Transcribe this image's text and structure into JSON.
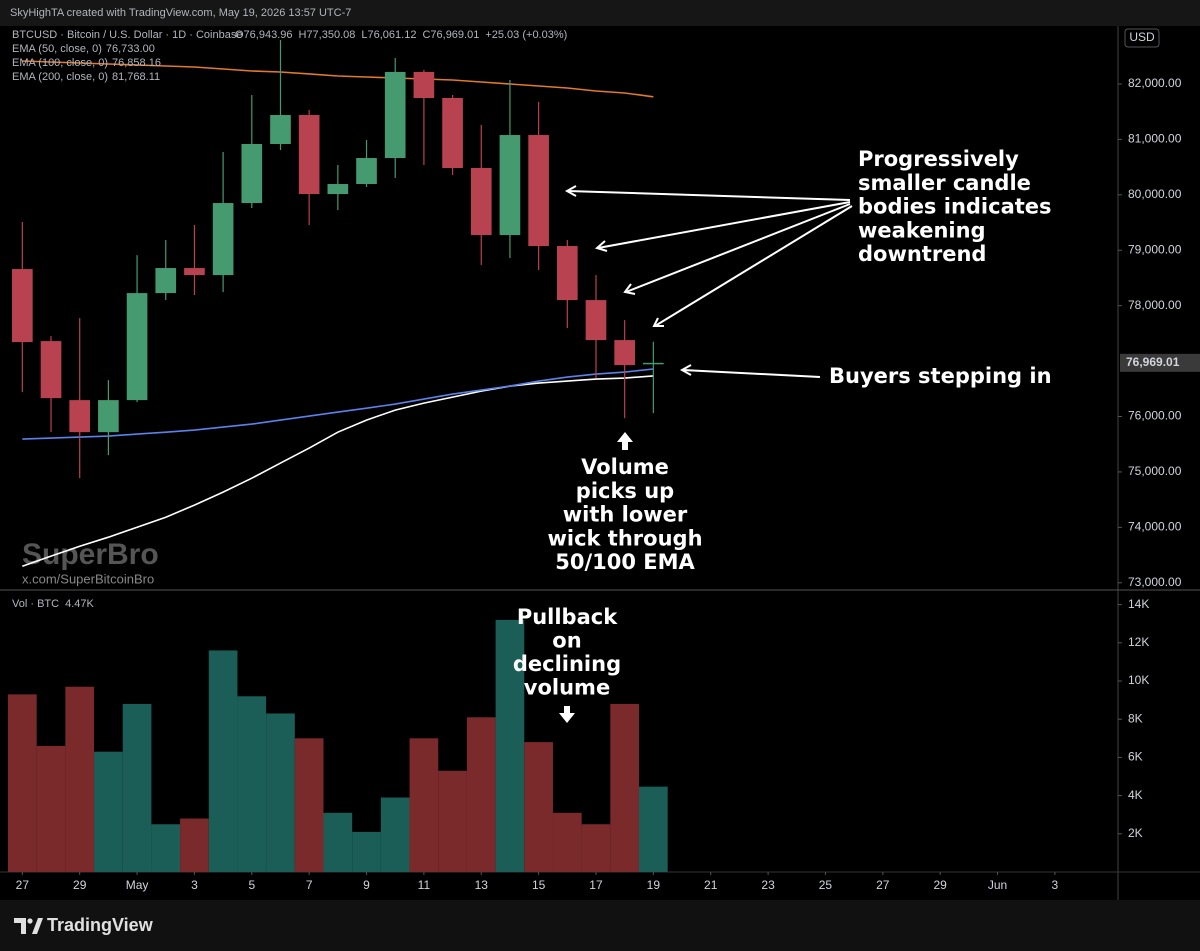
{
  "header": {
    "title": "SkyHighTA created with TradingView.com, May 19, 2026 13:57 UTC-7"
  },
  "chart_data": {
    "type": "candlestick",
    "symbol": "BTCUSD · Bitcoin / U.S. Dollar · 1D · Coinbase",
    "ohlc_labels": [
      "O76,943.96",
      "H77,350.08",
      "L76,061.12",
      "C76,969.01"
    ],
    "change_label": "+25.03 (+0.03%)",
    "currency": "USD",
    "last_price_label": "76,969.01",
    "xlim": [
      -0.5,
      38.2
    ],
    "xticks": [
      {
        "value": 0,
        "label": "27"
      },
      {
        "value": 2,
        "label": "29"
      },
      {
        "value": 4,
        "label": "May"
      },
      {
        "value": 6,
        "label": "3"
      },
      {
        "value": 8,
        "label": "5"
      },
      {
        "value": 10,
        "label": "7"
      },
      {
        "value": 12,
        "label": "9"
      },
      {
        "value": 14,
        "label": "11"
      },
      {
        "value": 16,
        "label": "13"
      },
      {
        "value": 18,
        "label": "15"
      },
      {
        "value": 20,
        "label": "17"
      },
      {
        "value": 22,
        "label": "19"
      },
      {
        "value": 24,
        "label": "21"
      },
      {
        "value": 26,
        "label": "23"
      },
      {
        "value": 28,
        "label": "25"
      },
      {
        "value": 30,
        "label": "27"
      },
      {
        "value": 32,
        "label": "29"
      },
      {
        "value": 34,
        "label": "Jun"
      },
      {
        "value": 36,
        "label": "3"
      }
    ],
    "ylim": [
      72870,
      83010
    ],
    "yticks": [
      {
        "value": 73000,
        "label": "73,000.00"
      },
      {
        "value": 74000,
        "label": "74,000.00"
      },
      {
        "value": 75000,
        "label": "75,000.00"
      },
      {
        "value": 76000,
        "label": "76,000.00"
      },
      {
        "value": 78000,
        "label": "78,000.00"
      },
      {
        "value": 79000,
        "label": "79,000.00"
      },
      {
        "value": 80000,
        "label": "80,000.00"
      },
      {
        "value": 81000,
        "label": "81,000.00"
      },
      {
        "value": 82000,
        "label": "82,000.00"
      }
    ],
    "candle_colors": {
      "up": "#469a70",
      "down": "#b8424f"
    },
    "candles": {
      "open": [
        78661,
        77361,
        76296,
        75718,
        76296,
        78227,
        78679,
        78552,
        79852,
        80917,
        81440,
        80014,
        80195,
        80664,
        82217,
        81747,
        80484,
        79274,
        81079,
        79076,
        78101,
        77379,
        76943.96
      ],
      "high": [
        79509,
        77451,
        77776,
        76657,
        78913,
        79184,
        79455,
        80773,
        81801,
        82794,
        81531,
        80538,
        80989,
        82469,
        82253,
        81801,
        81260,
        82072,
        81675,
        79184,
        78552,
        77740,
        77350.08
      ],
      "low": [
        76440,
        75718,
        74888,
        75303,
        76260,
        78101,
        78191,
        78245,
        79762,
        80809,
        79455,
        79726,
        80141,
        80303,
        80538,
        80357,
        78733,
        78859,
        78643,
        77596,
        76693,
        75971,
        76061.12
      ],
      "close": [
        77343,
        76332,
        75718,
        76296,
        78227,
        78679,
        78552,
        79852,
        80917,
        81440,
        80014,
        80195,
        80664,
        82217,
        81747,
        80484,
        79274,
        81079,
        79076,
        78101,
        77379,
        76928,
        76969.01
      ]
    },
    "ema": [
      {
        "name": "EMA (50, close, 0)",
        "value_label": "76,733.00",
        "color": "#ffffff",
        "values": [
          73300,
          73481,
          73661,
          73823,
          74003,
          74184,
          74401,
          74636,
          74888,
          75159,
          75430,
          75718,
          75935,
          76115,
          76242,
          76350,
          76458,
          76549,
          76603,
          76639,
          76675,
          76693,
          76733
        ]
      },
      {
        "name": "EMA (100, close, 0)",
        "value_label": "76,858.16",
        "color": "#5b82ea",
        "values": [
          75592,
          75610,
          75628,
          75646,
          75682,
          75718,
          75755,
          75809,
          75863,
          75935,
          76007,
          76079,
          76151,
          76224,
          76314,
          76404,
          76476,
          76549,
          76639,
          76711,
          76765,
          76801,
          76858.16
        ]
      },
      {
        "name": "EMA (200, close, 0)",
        "value_label": "81,768.11",
        "color": "#e07a2c",
        "values": [
          82415,
          82397,
          82379,
          82361,
          82343,
          82325,
          82307,
          82271,
          82235,
          82217,
          82181,
          82144,
          82126,
          82108,
          82090,
          82072,
          82036,
          82000,
          81964,
          81928,
          81874,
          81838,
          81768.11
        ]
      }
    ],
    "volume": {
      "name": "Vol · BTC",
      "value_label": "4.47K",
      "up_color": "#1b5d57",
      "down_color": "#7b2a2c",
      "ylim": [
        0,
        14660
      ],
      "yticks": [
        {
          "value": 2000,
          "label": "2K"
        },
        {
          "value": 4000,
          "label": "4K"
        },
        {
          "value": 6000,
          "label": "6K"
        },
        {
          "value": 8000,
          "label": "8K"
        },
        {
          "value": 10000,
          "label": "10K"
        },
        {
          "value": 12000,
          "label": "12K"
        },
        {
          "value": 14000,
          "label": "14K"
        }
      ],
      "values": [
        9300,
        6600,
        9700,
        6300,
        8800,
        2500,
        2800,
        11600,
        9200,
        8300,
        7000,
        3100,
        2100,
        3900,
        7000,
        5300,
        8100,
        13200,
        6800,
        3100,
        2500,
        8800,
        4470
      ]
    },
    "annotations": [
      {
        "lines": [
          "Progressively",
          "smaller candle",
          "bodies indicates",
          "weakening",
          "downtrend"
        ]
      },
      {
        "lines": [
          "Buyers stepping in"
        ]
      },
      {
        "lines": [
          "Volume",
          "picks up",
          "with lower",
          "wick through",
          "50/100 EMA"
        ]
      },
      {
        "lines": [
          "Pullback",
          "on",
          "declining",
          "volume"
        ]
      }
    ],
    "watermark": {
      "name": "SuperBro",
      "link": "x.com/SuperBitcoinBro"
    }
  },
  "footer": {
    "brand": "TradingView"
  }
}
